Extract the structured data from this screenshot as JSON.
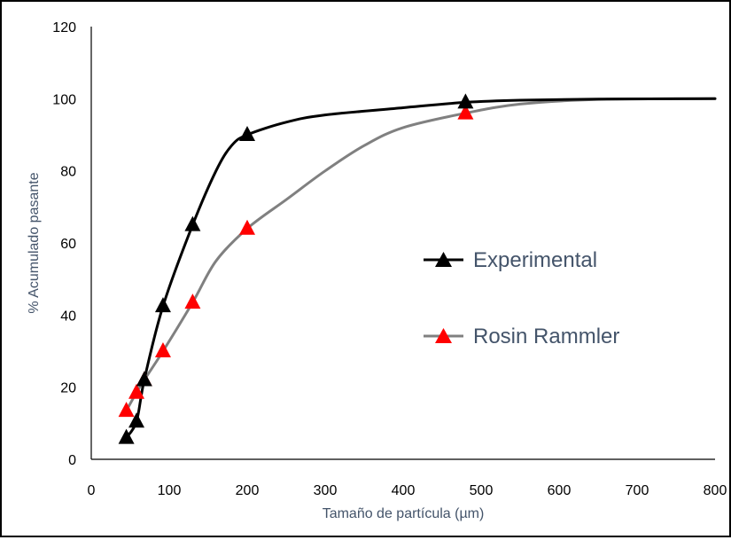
{
  "chart_data": {
    "type": "line",
    "title": "",
    "xlabel": "Tamaño de partícula (µm)",
    "ylabel": "% Acumulado pasante",
    "xlim": [
      0,
      800
    ],
    "ylim": [
      0,
      120
    ],
    "xticks": [
      0,
      100,
      200,
      300,
      400,
      500,
      600,
      700,
      800
    ],
    "yticks": [
      0,
      20,
      40,
      60,
      80,
      100,
      120
    ],
    "grid": false,
    "legend_position": "right",
    "series": [
      {
        "name": "Experimental",
        "color": "#000000",
        "marker_color": "#000000",
        "x": [
          45,
          58,
          68,
          92,
          130,
          200,
          480
        ],
        "y": [
          6,
          10.5,
          22,
          42.5,
          65,
          90,
          99
        ]
      },
      {
        "name": "Rosin Rammler",
        "color": "#808080",
        "marker_color": "#ff0000",
        "x": [
          45,
          58,
          68,
          92,
          130,
          200,
          480
        ],
        "y": [
          13.5,
          18.5,
          22,
          30,
          43.5,
          64,
          96
        ]
      }
    ],
    "curves": [
      {
        "series": "Experimental",
        "x": [
          45,
          58,
          68,
          92,
          130,
          160,
          180,
          200,
          250,
          300,
          400,
          480,
          550,
          650,
          800
        ],
        "y": [
          6,
          10.5,
          22,
          42.5,
          65,
          80,
          87,
          90,
          93.5,
          95.5,
          97.5,
          99,
          99.6,
          99.9,
          100
        ]
      },
      {
        "series": "Rosin Rammler",
        "x": [
          45,
          58,
          68,
          92,
          130,
          160,
          200,
          250,
          300,
          350,
          400,
          480,
          550,
          650,
          800
        ],
        "y": [
          13.5,
          18.5,
          22,
          30,
          43.5,
          55,
          64,
          72,
          80,
          87,
          92,
          96,
          98.5,
          99.8,
          100
        ]
      }
    ]
  }
}
